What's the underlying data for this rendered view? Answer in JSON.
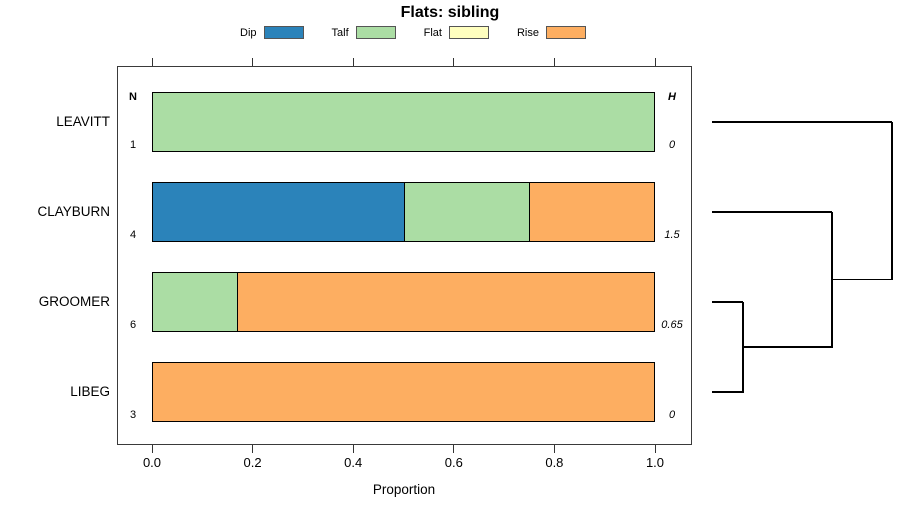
{
  "title": "Flats: sibling",
  "chart_data": {
    "type": "bar",
    "orientation": "horizontal",
    "stacked": true,
    "title": "Flats: sibling",
    "xlabel": "Proportion",
    "xlim": [
      0,
      1
    ],
    "xticks": [
      {
        "label": "0.0",
        "value": 0.0
      },
      {
        "label": "0.2",
        "value": 0.2
      },
      {
        "label": "0.4",
        "value": 0.4
      },
      {
        "label": "0.6",
        "value": 0.6
      },
      {
        "label": "0.8",
        "value": 0.8
      },
      {
        "label": "1.0",
        "value": 1.0
      }
    ],
    "legend": [
      {
        "label": "Dip",
        "color": "#2b83ba"
      },
      {
        "label": "Talf",
        "color": "#abdda4"
      },
      {
        "label": "Flat",
        "color": "#ffffbf"
      },
      {
        "label": "Rise",
        "color": "#fdae61"
      }
    ],
    "series_colors": {
      "Dip": "#2b83ba",
      "Talf": "#abdda4",
      "Flat": "#ffffbf",
      "Rise": "#fdae61"
    },
    "columns": {
      "n_header": "N",
      "h_header": "H"
    },
    "categories": [
      "LEAVITT",
      "CLAYBURN",
      "GROOMER",
      "LIBEG"
    ],
    "rows": [
      {
        "label": "LEAVITT",
        "n": "1",
        "h": "0",
        "segments": [
          {
            "series": "Talf",
            "value": 1.0
          }
        ]
      },
      {
        "label": "CLAYBURN",
        "n": "4",
        "h": "1.5",
        "segments": [
          {
            "series": "Dip",
            "value": 0.5
          },
          {
            "series": "Talf",
            "value": 0.25
          },
          {
            "series": "Rise",
            "value": 0.25
          }
        ]
      },
      {
        "label": "GROOMER",
        "n": "6",
        "h": "0.65",
        "segments": [
          {
            "series": "Talf",
            "value": 0.1667
          },
          {
            "series": "Rise",
            "value": 0.8333
          }
        ]
      },
      {
        "label": "LIBEG",
        "n": "3",
        "h": "0",
        "segments": [
          {
            "series": "Rise",
            "value": 1.0
          }
        ]
      }
    ],
    "dendrogram": {
      "merges": [
        {
          "a": "GROOMER",
          "b": "LIBEG",
          "x_frac": 0.172
        },
        {
          "a": "node0",
          "b": "CLAYBURN",
          "x_frac": 0.667
        },
        {
          "a": "node1",
          "b": "LEAVITT",
          "x_frac": 1.0
        }
      ]
    },
    "frame_color": "#3a3a3a",
    "bar_border_color": "#000000",
    "grid": false,
    "legend_position": "top"
  }
}
